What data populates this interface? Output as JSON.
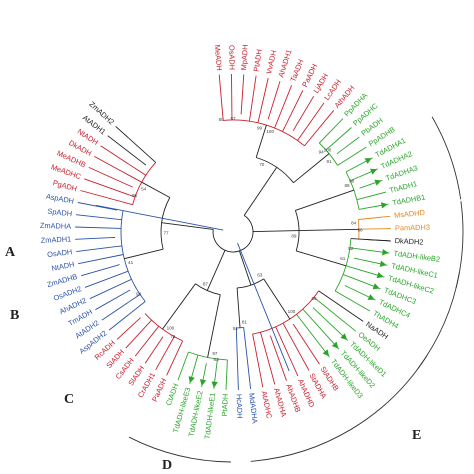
{
  "colors": {
    "red": "#c8202c",
    "blue": "#2b52a8",
    "green": "#2aa52a",
    "orange": "#e08a1e",
    "black": "#222222",
    "arrow": "#2aa52a"
  },
  "clade_labels": [
    "A",
    "B",
    "C",
    "D",
    "E"
  ],
  "leaves": [
    {
      "label": "MeADH",
      "color": "red"
    },
    {
      "label": "OsADH",
      "color": "red"
    },
    {
      "label": "MpADH",
      "color": "red"
    },
    {
      "label": "PtADH",
      "color": "red"
    },
    {
      "label": "VvADH",
      "color": "red"
    },
    {
      "label": "AhADH1",
      "color": "red"
    },
    {
      "label": "TaADH",
      "color": "red"
    },
    {
      "label": "PaADH",
      "color": "red"
    },
    {
      "label": "LjADH",
      "color": "red"
    },
    {
      "label": "LcADH",
      "color": "red"
    },
    {
      "label": "AthADH",
      "color": "red"
    },
    {
      "label": "PpADHA",
      "color": "green"
    },
    {
      "label": "PpADHC",
      "color": "green"
    },
    {
      "label": "PbADH",
      "color": "green"
    },
    {
      "label": "PpADHB",
      "color": "green"
    },
    {
      "label": "TdADHA1",
      "color": "green",
      "arrow": true
    },
    {
      "label": "TdADHA2",
      "color": "green",
      "arrow": true
    },
    {
      "label": "TdADHA3",
      "color": "green",
      "arrow": true
    },
    {
      "label": "ThADH1",
      "color": "green"
    },
    {
      "label": "TdADHB1",
      "color": "green",
      "arrow": true
    },
    {
      "label": "MsADHD",
      "color": "orange"
    },
    {
      "label": "PamADH3",
      "color": "orange"
    },
    {
      "label": "DkADH2",
      "color": "black"
    },
    {
      "label": "TdADH-likeB2",
      "color": "green",
      "arrow": true
    },
    {
      "label": "TdADH-likeC1",
      "color": "green",
      "arrow": true
    },
    {
      "label": "TdADH-likeC2",
      "color": "green",
      "arrow": true
    },
    {
      "label": "TdADHC3",
      "color": "green",
      "arrow": true
    },
    {
      "label": "TdADHC4",
      "color": "green",
      "arrow": true
    },
    {
      "label": "ThADH4",
      "color": "green"
    },
    {
      "label": "NaADH",
      "color": "black"
    },
    {
      "label": "OeADH",
      "color": "green"
    },
    {
      "label": "TdADH-likeD1",
      "color": "green",
      "arrow": true
    },
    {
      "label": "TdADH-likeD2",
      "color": "green",
      "arrow": true
    },
    {
      "label": "TdADH-likeD3",
      "color": "green",
      "arrow": true
    },
    {
      "label": "SlADHB",
      "color": "red"
    },
    {
      "label": "StADHA",
      "color": "red"
    },
    {
      "label": "AhADHD",
      "color": "red"
    },
    {
      "label": "AhADHB",
      "color": "red"
    },
    {
      "label": "AhADHA",
      "color": "red"
    },
    {
      "label": "AtADHC",
      "color": "red"
    },
    {
      "label": "MdADHA",
      "color": "blue"
    },
    {
      "label": "HcADH",
      "color": "blue"
    },
    {
      "label": "PtADH",
      "color": "green"
    },
    {
      "label": "TdADH-likeE1",
      "color": "green",
      "arrow": true
    },
    {
      "label": "TdADH-likeE2",
      "color": "green",
      "arrow": true
    },
    {
      "label": "TdADH-likeE3",
      "color": "green",
      "arrow": true
    },
    {
      "label": "CtADH",
      "color": "green"
    },
    {
      "label": "PaADH",
      "color": "red"
    },
    {
      "label": "CrADH1",
      "color": "red"
    },
    {
      "label": "SlADH",
      "color": "red"
    },
    {
      "label": "CsADH",
      "color": "red"
    },
    {
      "label": "SlADH",
      "color": "red"
    },
    {
      "label": "RcADH",
      "color": "red"
    },
    {
      "label": "AspADH2",
      "color": "blue"
    },
    {
      "label": "AtADH2",
      "color": "blue"
    },
    {
      "label": "TmADH",
      "color": "blue"
    },
    {
      "label": "AhADH2",
      "color": "blue"
    },
    {
      "label": "OsADH2",
      "color": "blue"
    },
    {
      "label": "ZmADHB",
      "color": "blue"
    },
    {
      "label": "NtADH",
      "color": "blue"
    },
    {
      "label": "OsADH",
      "color": "blue"
    },
    {
      "label": "ZmADH1",
      "color": "blue"
    },
    {
      "label": "ZmADHA",
      "color": "blue"
    },
    {
      "label": "SpADH",
      "color": "blue"
    },
    {
      "label": "AspADH",
      "color": "blue"
    },
    {
      "label": "PgADH",
      "color": "red"
    },
    {
      "label": "MeADHC",
      "color": "red"
    },
    {
      "label": "MeADHB",
      "color": "red"
    },
    {
      "label": "DkADH",
      "color": "red"
    },
    {
      "label": "NtADH",
      "color": "red"
    },
    {
      "label": "AtADH1",
      "color": "black"
    },
    {
      "label": "ZmADH2",
      "color": "black"
    }
  ],
  "bootstrap": [
    "99",
    "57",
    "94",
    "100",
    "88",
    "98",
    "84",
    "96",
    "61",
    "52",
    "100",
    "69",
    "81",
    "51",
    "97",
    "83",
    "100",
    "78",
    "41",
    "98",
    "54",
    "95",
    "70",
    "89",
    "63",
    "87",
    "77",
    "100",
    "60",
    "91"
  ]
}
